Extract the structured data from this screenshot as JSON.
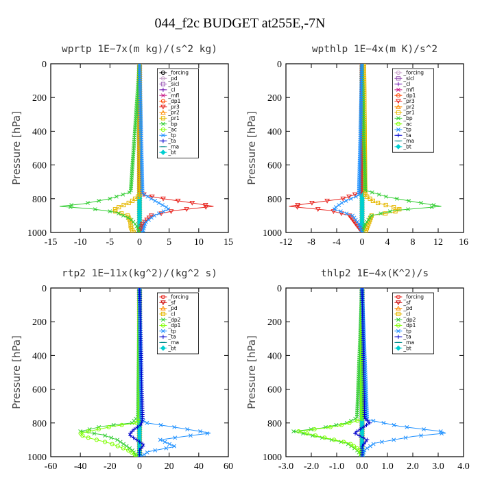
{
  "figure_title": "044_f2c  BUDGET at255E,-7N",
  "chart_data": [
    {
      "type": "line",
      "title": "wprtp   1E−7x(m kg)/(s^2 kg)",
      "ylabel": "Pressure [hPa]",
      "xlim": [
        -15,
        15
      ],
      "ylim": [
        1000,
        0
      ],
      "xticks": [
        -15,
        -10,
        -5,
        0,
        5,
        10,
        15
      ],
      "xtick_labels": [
        "-15",
        "-10",
        "-5",
        "0",
        "5",
        "10",
        "15"
      ],
      "yticks": [
        0,
        200,
        400,
        600,
        800,
        1000
      ],
      "legend_position": "top-right",
      "series": [
        {
          "name": "_forcing",
          "color": "#000000",
          "marker": "o",
          "p": [
            0,
            1000
          ],
          "x": [
            0,
            0
          ]
        },
        {
          "name": "_pd",
          "color": "#c8a2c8",
          "marker": "o",
          "p": [
            0,
            1000
          ],
          "x": [
            0,
            0
          ]
        },
        {
          "name": "_sicl",
          "color": "#9b59b6",
          "marker": "s",
          "p": [
            0,
            1000
          ],
          "x": [
            0,
            0
          ]
        },
        {
          "name": "_cl",
          "color": "#6a0dad",
          "marker": "+",
          "p": [
            0,
            1000
          ],
          "x": [
            0,
            0
          ]
        },
        {
          "name": "_mfl",
          "color": "#c71585",
          "marker": "x",
          "p": [
            0,
            1000
          ],
          "x": [
            0,
            0
          ]
        },
        {
          "name": "_dp1",
          "color": "#ff4500",
          "marker": "o",
          "p": [
            0,
            1000
          ],
          "x": [
            0,
            0
          ]
        },
        {
          "name": "_pr3",
          "color": "#e8251f",
          "marker": "v",
          "p": [
            0,
            760,
            780,
            800,
            820,
            845,
            870,
            900,
            950,
            1000
          ],
          "x": [
            0,
            0,
            1,
            4,
            8,
            12.5,
            6,
            2,
            0.5,
            0
          ]
        },
        {
          "name": "_pr2",
          "color": "#ff8c00",
          "marker": "^",
          "p": [
            0,
            1000
          ],
          "x": [
            0,
            0
          ]
        },
        {
          "name": "_pr1",
          "color": "#e6b800",
          "marker": "s",
          "p": [
            0,
            780,
            820,
            850,
            870,
            900,
            940,
            970,
            1000
          ],
          "x": [
            0,
            0,
            -1.5,
            -3.5,
            -4.5,
            -2,
            -1.5,
            -1.5,
            -1
          ]
        },
        {
          "name": "_bp",
          "color": "#32cd32",
          "marker": "x",
          "p": [
            0,
            760,
            800,
            830,
            845,
            860,
            880,
            920,
            960,
            1000
          ],
          "x": [
            0,
            -1.5,
            -5,
            -9.5,
            -13.5,
            -8,
            -4,
            -1.5,
            -0.5,
            0
          ]
        },
        {
          "name": "_ac",
          "color": "#7fff00",
          "marker": "o",
          "p": [
            0,
            1000
          ],
          "x": [
            0,
            0
          ]
        },
        {
          "name": "_tp",
          "color": "#1e90ff",
          "marker": "x",
          "p": [
            0,
            770,
            820,
            860,
            900,
            940,
            1000
          ],
          "x": [
            0,
            0.5,
            3,
            5,
            2.5,
            1,
            0.5
          ]
        },
        {
          "name": "_ta",
          "color": "#0000cd",
          "marker": "+",
          "p": [
            0,
            1000
          ],
          "x": [
            0,
            0
          ]
        },
        {
          "name": "_ma",
          "color": "#008b8b",
          "marker": "-",
          "p": [
            0,
            1000
          ],
          "x": [
            0,
            0
          ]
        },
        {
          "name": "_bt",
          "color": "#00ced1",
          "marker": "D",
          "p": [
            0,
            1000
          ],
          "x": [
            0,
            0
          ]
        }
      ]
    },
    {
      "type": "line",
      "title": "wpthlp   1E−4x(m K)/s^2",
      "ylabel": "Pressure [hPa]",
      "xlim": [
        -12,
        16
      ],
      "ylim": [
        1000,
        0
      ],
      "xticks": [
        -12,
        -8,
        -4,
        0,
        4,
        8,
        12,
        16
      ],
      "xtick_labels": [
        "-12",
        "-8",
        "-4",
        "0",
        "4",
        "8",
        "12",
        "16"
      ],
      "yticks": [
        0,
        200,
        400,
        600,
        800,
        1000
      ],
      "legend_position": "top-right",
      "series": [
        {
          "name": "_forcing",
          "color": "#c8a2c8",
          "marker": "o",
          "p": [
            0,
            1000
          ],
          "x": [
            0,
            0
          ]
        },
        {
          "name": "_sicl",
          "color": "#9b59b6",
          "marker": "s",
          "p": [
            0,
            1000
          ],
          "x": [
            0,
            0
          ]
        },
        {
          "name": "_cl",
          "color": "#6a0dad",
          "marker": "+",
          "p": [
            0,
            1000
          ],
          "x": [
            0,
            0
          ]
        },
        {
          "name": "_mfl",
          "color": "#c71585",
          "marker": "x",
          "p": [
            0,
            1000
          ],
          "x": [
            0,
            0
          ]
        },
        {
          "name": "_dp1",
          "color": "#ff4500",
          "marker": "o",
          "p": [
            0,
            1000
          ],
          "x": [
            0,
            0
          ]
        },
        {
          "name": "_pr3",
          "color": "#e8251f",
          "marker": "v",
          "p": [
            0,
            760,
            800,
            820,
            845,
            870,
            900,
            950,
            1000
          ],
          "x": [
            0,
            0,
            -3,
            -7,
            -11.5,
            -5,
            -2,
            -1,
            0
          ]
        },
        {
          "name": "_pr2",
          "color": "#ff8c00",
          "marker": "^",
          "p": [
            0,
            1000
          ],
          "x": [
            0,
            0
          ]
        },
        {
          "name": "_pr1",
          "color": "#e6b800",
          "marker": "s",
          "p": [
            0,
            780,
            820,
            860,
            880,
            900,
            950,
            1000
          ],
          "x": [
            0.3,
            0.5,
            2,
            6,
            5,
            1.5,
            1,
            0.5
          ]
        },
        {
          "name": "_bp",
          "color": "#32cd32",
          "marker": "x",
          "p": [
            0,
            750,
            790,
            820,
            845,
            870,
            900,
            950,
            1000
          ],
          "x": [
            0,
            0.5,
            4,
            8.5,
            12.5,
            5,
            1.5,
            0.5,
            0
          ]
        },
        {
          "name": "_ac",
          "color": "#7fff00",
          "marker": "o",
          "p": [
            0,
            1000
          ],
          "x": [
            0,
            0
          ]
        },
        {
          "name": "_tp",
          "color": "#1e90ff",
          "marker": "x",
          "p": [
            0,
            780,
            820,
            860,
            900,
            950,
            1000
          ],
          "x": [
            0,
            -0.5,
            -3,
            -4.5,
            -1.5,
            -0.5,
            0
          ]
        },
        {
          "name": "_ta",
          "color": "#0000cd",
          "marker": "+",
          "p": [
            0,
            1000
          ],
          "x": [
            0,
            0
          ]
        },
        {
          "name": "_ma",
          "color": "#008b8b",
          "marker": "-",
          "p": [
            0,
            1000
          ],
          "x": [
            0,
            0
          ]
        },
        {
          "name": "_bt",
          "color": "#00ced1",
          "marker": "D",
          "p": [
            0,
            1000
          ],
          "x": [
            0,
            0
          ]
        }
      ]
    },
    {
      "type": "line",
      "title": "rtp2   1E−11x(kg^2)/(kg^2 s)",
      "ylabel": "Pressure [hPa]",
      "xlim": [
        -60,
        60
      ],
      "ylim": [
        1000,
        0
      ],
      "xticks": [
        -60,
        -40,
        -20,
        0,
        20,
        40,
        60
      ],
      "xtick_labels": [
        "-60",
        "-40",
        "-20",
        "0",
        "20",
        "40",
        "60"
      ],
      "yticks": [
        0,
        200,
        400,
        600,
        800,
        1000
      ],
      "legend_position": "top-right",
      "series": [
        {
          "name": "_forcing",
          "color": "#e8251f",
          "marker": "o",
          "p": [
            0,
            1000
          ],
          "x": [
            0,
            0
          ]
        },
        {
          "name": "_sf",
          "color": "#cc0000",
          "marker": "v",
          "p": [
            0,
            1000
          ],
          "x": [
            0,
            0
          ]
        },
        {
          "name": "_pd",
          "color": "#ff8c00",
          "marker": "^",
          "p": [
            0,
            1000
          ],
          "x": [
            0,
            0
          ]
        },
        {
          "name": "_cl",
          "color": "#e6b800",
          "marker": "s",
          "p": [
            0,
            1000
          ],
          "x": [
            0,
            0
          ]
        },
        {
          "name": "_dp2",
          "color": "#32cd32",
          "marker": "x",
          "p": [
            0,
            760,
            800,
            820,
            850,
            870,
            900,
            930,
            960,
            1000
          ],
          "x": [
            0,
            -1,
            -5,
            -25,
            -40,
            -25,
            -15,
            -10,
            -5,
            -2
          ]
        },
        {
          "name": "_dp1",
          "color": "#7fff00",
          "marker": "o",
          "p": [
            0,
            780,
            800,
            820,
            860,
            880,
            920,
            960,
            1000
          ],
          "x": [
            0,
            0,
            -2,
            -18,
            -40,
            -38,
            -20,
            -8,
            -1
          ]
        },
        {
          "name": "_tp",
          "color": "#1e90ff",
          "marker": "x",
          "p": [
            0,
            780,
            800,
            820,
            860,
            880,
            900,
            940,
            970,
            1000
          ],
          "x": [
            0,
            1,
            5,
            20,
            48,
            30,
            14,
            24,
            6,
            1
          ]
        },
        {
          "name": "_ta",
          "color": "#0000cd",
          "marker": "+",
          "p": [
            0,
            780,
            810,
            840,
            870,
            900,
            930,
            960,
            1000
          ],
          "x": [
            0,
            2,
            1,
            -4,
            -7,
            -2,
            3,
            0,
            0
          ]
        },
        {
          "name": "_ma",
          "color": "#008b8b",
          "marker": "-",
          "p": [
            0,
            1000
          ],
          "x": [
            0,
            0
          ]
        },
        {
          "name": "_bt",
          "color": "#00ced1",
          "marker": "D",
          "p": [
            0,
            1000
          ],
          "x": [
            0,
            0
          ]
        }
      ]
    },
    {
      "type": "line",
      "title": "thlp2   1E−4x(K^2)/s",
      "ylabel": "Pressure [hPa]",
      "xlim": [
        -3.0,
        4.0
      ],
      "ylim": [
        1000,
        0
      ],
      "xticks": [
        -3.0,
        -2.0,
        -1.0,
        0.0,
        1.0,
        2.0,
        3.0,
        4.0
      ],
      "xtick_labels": [
        "-3.0",
        "-2.0",
        "-1.0",
        "0.0",
        "1.0",
        "2.0",
        "3.0",
        "4.0"
      ],
      "yticks": [
        0,
        200,
        400,
        600,
        800,
        1000
      ],
      "legend_position": "top-right",
      "series": [
        {
          "name": "_forcing",
          "color": "#e8251f",
          "marker": "o",
          "p": [
            0,
            1000
          ],
          "x": [
            0,
            0
          ]
        },
        {
          "name": "_sf",
          "color": "#cc0000",
          "marker": "v",
          "p": [
            0,
            1000
          ],
          "x": [
            0,
            0
          ]
        },
        {
          "name": "_pd",
          "color": "#ff8c00",
          "marker": "^",
          "p": [
            0,
            1000
          ],
          "x": [
            0,
            0
          ]
        },
        {
          "name": "_cl",
          "color": "#e6b800",
          "marker": "s",
          "p": [
            0,
            1000
          ],
          "x": [
            0,
            0
          ]
        },
        {
          "name": "_dp2",
          "color": "#32cd32",
          "marker": "x",
          "p": [
            0,
            770,
            800,
            830,
            850,
            880,
            920,
            960,
            1000
          ],
          "x": [
            0,
            -0.2,
            -0.6,
            -1.6,
            -2.7,
            -1.8,
            -0.6,
            -0.2,
            0
          ]
        },
        {
          "name": "_dp1",
          "color": "#7fff00",
          "marker": "o",
          "p": [
            0,
            780,
            820,
            850,
            880,
            920,
            960,
            1000
          ],
          "x": [
            0,
            0,
            -1,
            -2.5,
            -1.7,
            -0.5,
            -0.1,
            0
          ]
        },
        {
          "name": "_tp",
          "color": "#1e90ff",
          "marker": "x",
          "p": [
            0,
            780,
            820,
            850,
            860,
            880,
            920,
            960,
            1000
          ],
          "x": [
            0,
            0.2,
            1.5,
            3.1,
            3.3,
            2.0,
            0.5,
            0.1,
            0
          ]
        },
        {
          "name": "_ta",
          "color": "#0000cd",
          "marker": "+",
          "p": [
            0,
            770,
            800,
            830,
            860,
            900,
            940,
            1000
          ],
          "x": [
            0,
            0.1,
            0.3,
            0,
            -0.3,
            0.2,
            0,
            0
          ]
        },
        {
          "name": "_ma",
          "color": "#008b8b",
          "marker": "-",
          "p": [
            0,
            1000
          ],
          "x": [
            0,
            0
          ]
        },
        {
          "name": "_bt",
          "color": "#00ced1",
          "marker": "D",
          "p": [
            0,
            1000
          ],
          "x": [
            0,
            0
          ]
        }
      ]
    }
  ]
}
